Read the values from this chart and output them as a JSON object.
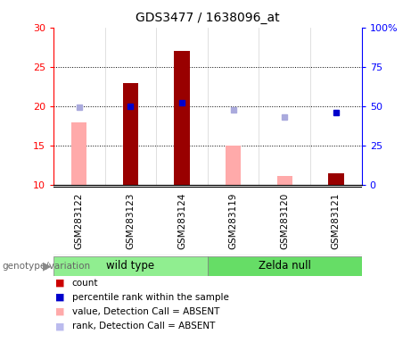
{
  "title": "GDS3477 / 1638096_at",
  "samples": [
    "GSM283122",
    "GSM283123",
    "GSM283124",
    "GSM283119",
    "GSM283120",
    "GSM283121"
  ],
  "ylim_left": [
    10,
    30
  ],
  "ylim_right": [
    0,
    100
  ],
  "yticks_left": [
    10,
    15,
    20,
    25,
    30
  ],
  "yticks_right": [
    0,
    25,
    50,
    75,
    100
  ],
  "count_values": [
    null,
    23.0,
    27.0,
    null,
    null,
    11.5
  ],
  "count_absent_values": [
    18.0,
    null,
    null,
    15.0,
    11.2,
    null
  ],
  "rank_values": [
    null,
    50.0,
    52.5,
    null,
    null,
    46.0
  ],
  "rank_absent_values": [
    49.5,
    null,
    null,
    48.0,
    43.5,
    null
  ],
  "bar_width": 0.3,
  "color_count_present": "#990000",
  "color_count_absent": "#ffaaaa",
  "color_rank_present": "#0000cc",
  "color_rank_absent": "#aaaadd",
  "wildtype_color": "#90ee90",
  "zeldanull_color": "#66dd66",
  "group_label": "genotype/variation",
  "legend_items": [
    {
      "label": "count",
      "color": "#cc0000"
    },
    {
      "label": "percentile rank within the sample",
      "color": "#0000cc"
    },
    {
      "label": "value, Detection Call = ABSENT",
      "color": "#ffaaaa"
    },
    {
      "label": "rank, Detection Call = ABSENT",
      "color": "#bbbbee"
    }
  ]
}
